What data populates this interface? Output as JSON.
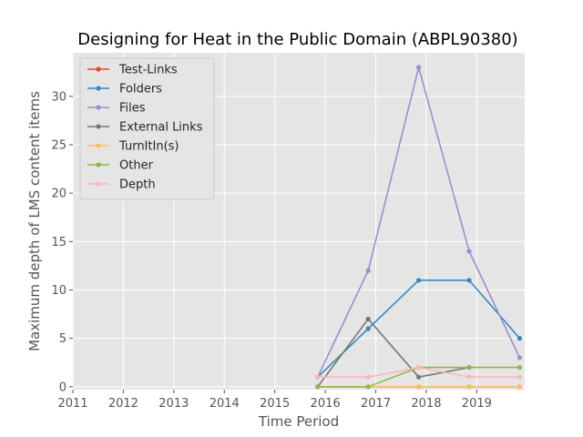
{
  "chart_data": {
    "type": "line",
    "title": "Designing for Heat in the Public Domain (ABPL90380)",
    "xlabel": "Time Period",
    "ylabel": "Maximum depth of LMS content items",
    "xlim": [
      2011.0,
      2019.95
    ],
    "ylim": [
      -0.3,
      34.5
    ],
    "xticks": [
      2011,
      2012,
      2013,
      2014,
      2015,
      2016,
      2017,
      2018,
      2019
    ],
    "yticks": [
      0,
      5,
      10,
      15,
      20,
      25,
      30
    ],
    "grid": true,
    "legend_position": "upper left",
    "x": [
      2015.85,
      2016.85,
      2017.85,
      2018.85,
      2019.85
    ],
    "series": [
      {
        "name": "Test-Links",
        "color": "#e24a33",
        "values": [
          0,
          0,
          0,
          0,
          0
        ]
      },
      {
        "name": "Folders",
        "color": "#348abd",
        "values": [
          1,
          6,
          11,
          11,
          5
        ]
      },
      {
        "name": "Files",
        "color": "#988ed5",
        "values": [
          1,
          12,
          33,
          14,
          3
        ]
      },
      {
        "name": "External Links",
        "color": "#777777",
        "values": [
          0,
          7,
          1,
          2,
          null
        ]
      },
      {
        "name": "TurnItIn(s)",
        "color": "#fbc15e",
        "values": [
          null,
          0,
          0,
          0,
          0
        ]
      },
      {
        "name": "Other",
        "color": "#8eba42",
        "values": [
          0,
          0,
          2,
          2,
          2
        ]
      },
      {
        "name": "Depth",
        "color": "#ffb5b8",
        "values": [
          1,
          1,
          2,
          1,
          1
        ]
      }
    ]
  }
}
